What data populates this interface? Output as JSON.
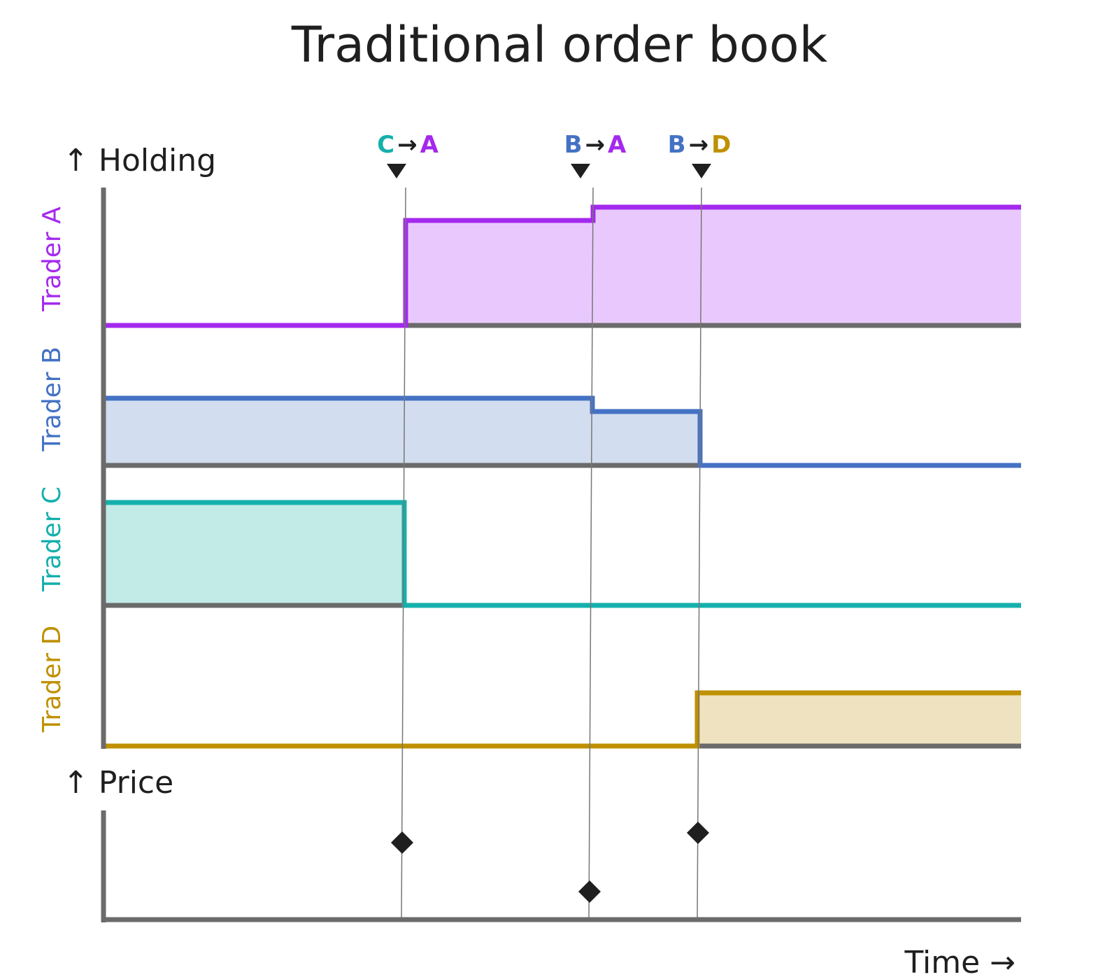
{
  "title": "Traditional order book",
  "holding_axis_label": "↑ Holding",
  "price_axis_label": "↑ Price",
  "time_axis_label": "Time →",
  "traders": [
    {
      "id": "A",
      "label": "Trader A",
      "color": "#a429ee",
      "fill": "#e9c9fd"
    },
    {
      "id": "B",
      "label": "Trader B",
      "color": "#4472c4",
      "fill": "#d2ddef"
    },
    {
      "id": "C",
      "label": "Trader C",
      "color": "#14b0ac",
      "fill": "#c2ebe8"
    },
    {
      "id": "D",
      "label": "Trader D",
      "color": "#bf9000",
      "fill": "#efe2c0"
    }
  ],
  "trades": [
    {
      "from": "C",
      "arrow": "→",
      "to": "A"
    },
    {
      "from": "B",
      "arrow": "→",
      "to": "A"
    },
    {
      "from": "B",
      "arrow": "→",
      "to": "D"
    }
  ]
}
